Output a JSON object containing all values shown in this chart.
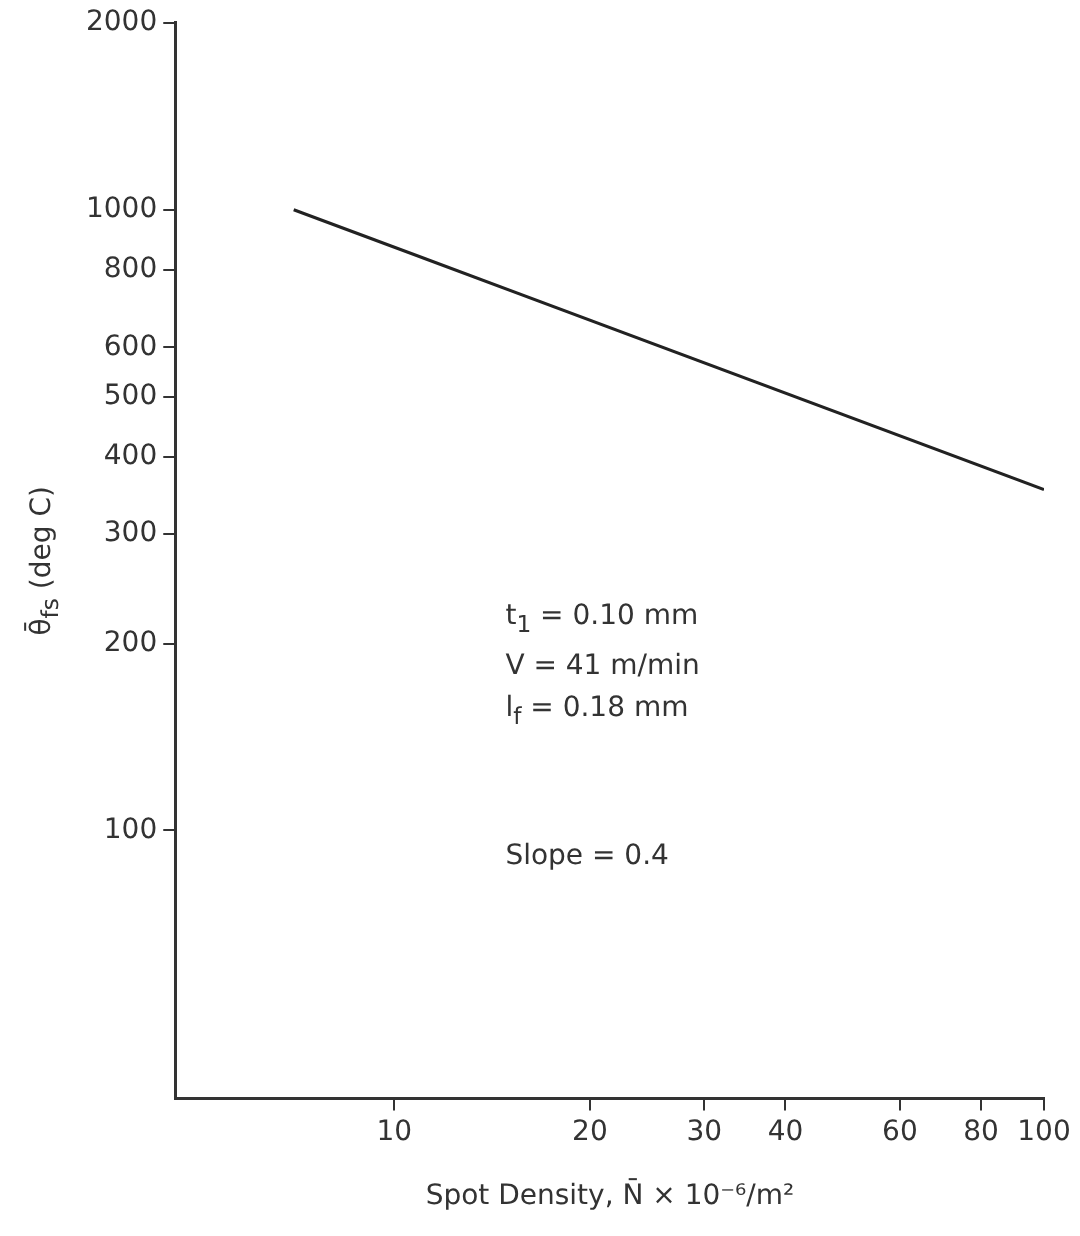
{
  "chart_data": {
    "type": "line",
    "xlabel": "Spot Density, N̄ × 10⁻⁶/m²",
    "ylabel": "θ̄$_{fs}$ (deg C)",
    "x": [
      7,
      100
    ],
    "series": [
      {
        "color": "#222222",
        "values": [
          1000,
          354
        ]
      }
    ],
    "log": "xy",
    "xlim": [
      4.6,
      100
    ],
    "ylim": [
      37,
      2000
    ],
    "xticks": [
      10,
      20,
      30,
      40,
      60,
      80,
      100
    ],
    "yticks": [
      100,
      200,
      300,
      400,
      500,
      600,
      800,
      1000,
      2000
    ],
    "grid": false,
    "legend": false,
    "marker": "none",
    "line_style": "solid",
    "annotations": [
      "t$_{1}$ = 0.10 mm",
      "V = 41 m/min",
      "l$_{f}$ = 0.18 mm",
      "Slope = 0.4"
    ]
  }
}
